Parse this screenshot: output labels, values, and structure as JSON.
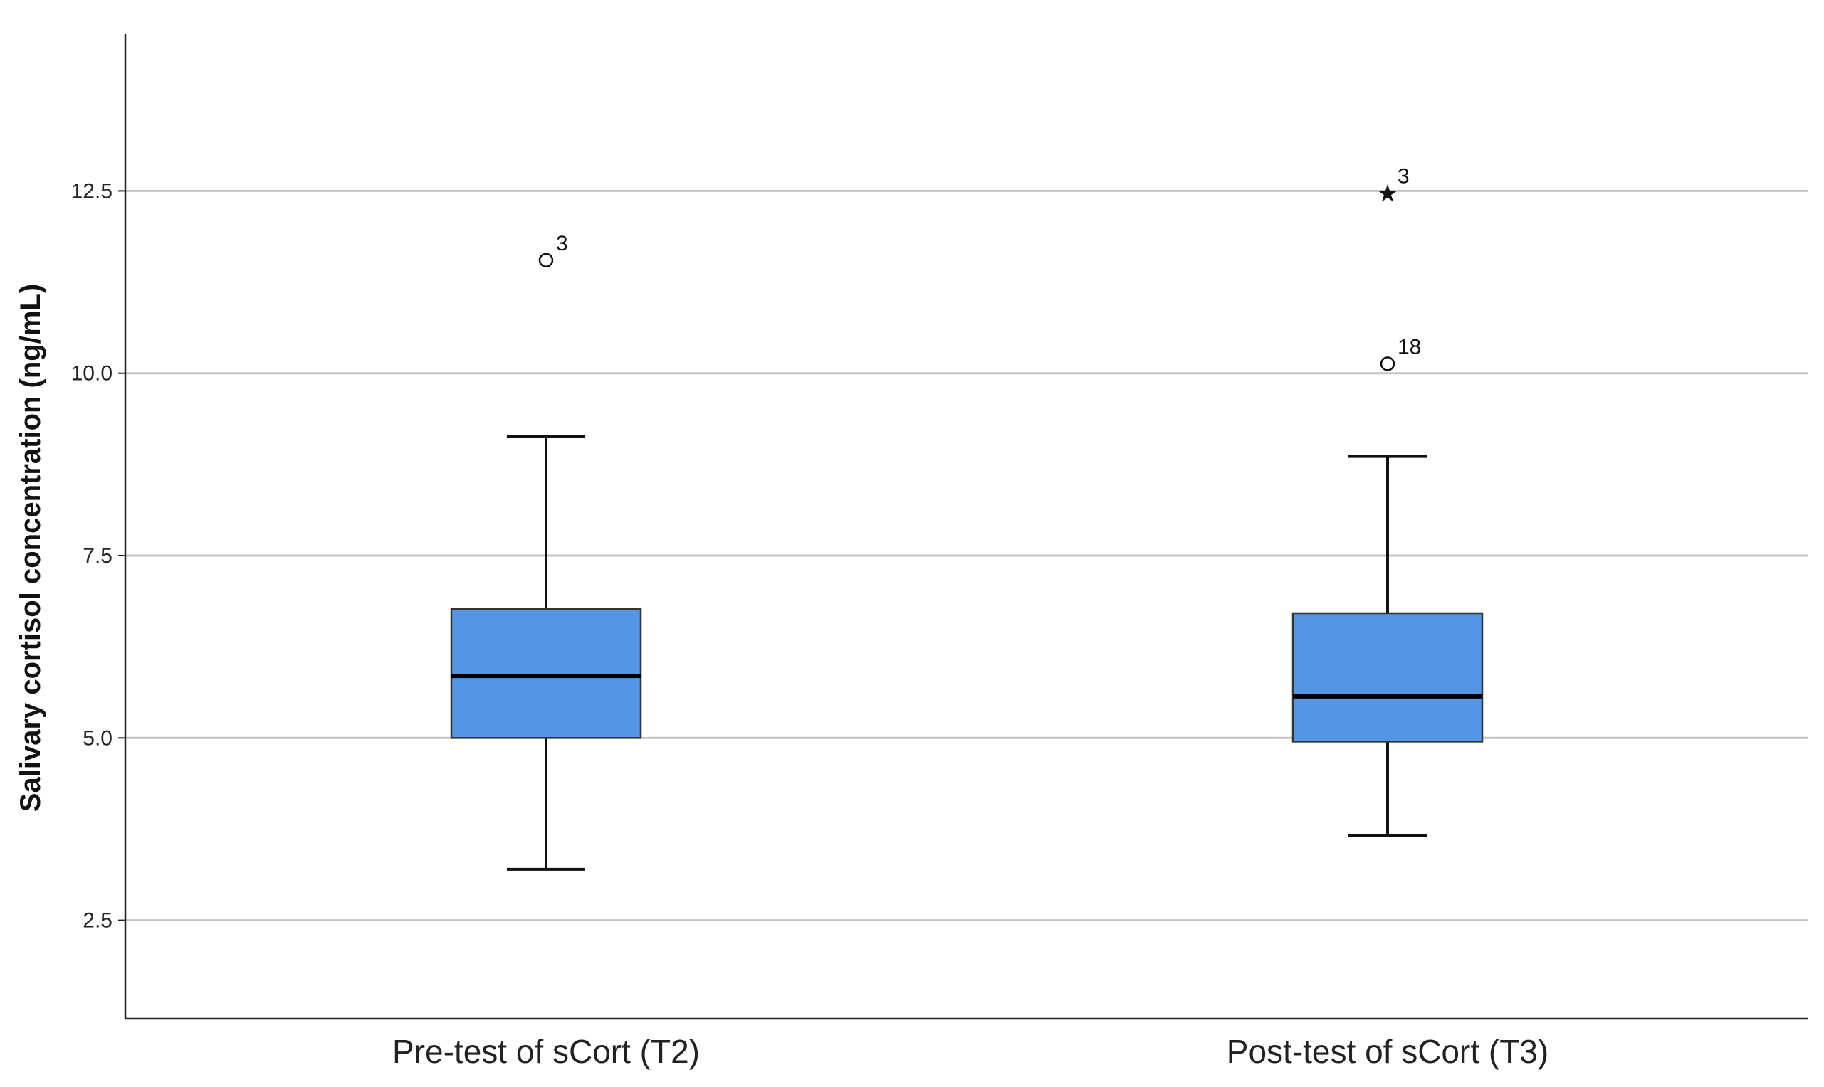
{
  "chart_data": {
    "type": "box",
    "ylabel": "Salivary cortisol concentration (ng/mL)",
    "xlabel": "",
    "ylim": [
      1.15,
      14.65
    ],
    "yticks": [
      2.5,
      5.0,
      7.5,
      10.0,
      12.5
    ],
    "ytick_labels": [
      "2.5",
      "5.0",
      "7.5",
      "10.0",
      "12.5"
    ],
    "grid": true,
    "categories": [
      "Pre-test of sCort (T2)",
      "Post-test of sCort (T3)"
    ],
    "box_color": "#5496E4",
    "boxes": [
      {
        "name": "Pre-test of sCort (T2)",
        "whisker_low": 3.2,
        "q1": 5.0,
        "median": 5.85,
        "q3": 6.77,
        "whisker_high": 9.13,
        "outliers": [
          {
            "value": 11.55,
            "label": "3",
            "kind": "circle"
          }
        ]
      },
      {
        "name": "Post-test of sCort (T3)",
        "whisker_low": 3.66,
        "q1": 4.95,
        "median": 5.57,
        "q3": 6.71,
        "whisker_high": 8.86,
        "outliers": [
          {
            "value": 10.13,
            "label": "18",
            "kind": "circle"
          },
          {
            "value": 12.47,
            "label": "3",
            "kind": "star"
          }
        ]
      }
    ]
  }
}
